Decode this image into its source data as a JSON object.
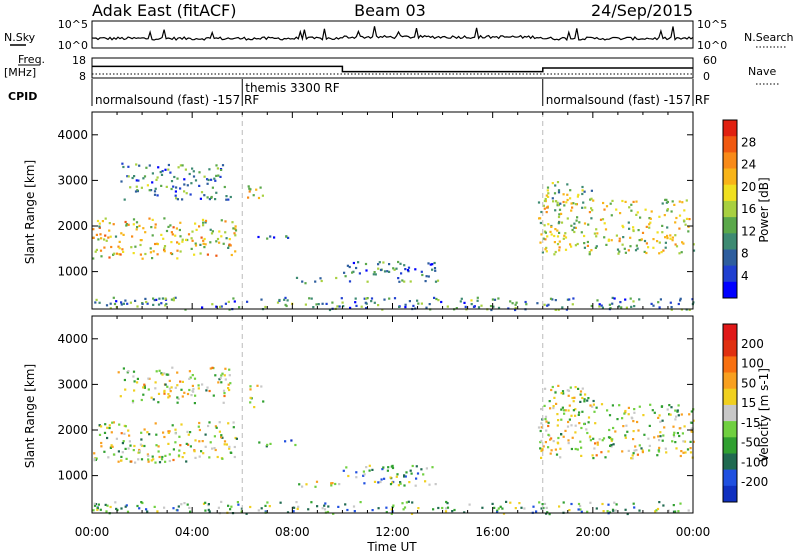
{
  "header": {
    "title_left": "Adak East (fitACF)",
    "title_center": "Beam 03",
    "title_right": "24/Sep/2015"
  },
  "top_panels": {
    "nsky_label": "N.Sky",
    "nsky_ticks": [
      "10^5",
      "10^0"
    ],
    "nsearch_label": "N.Search",
    "nsearch_ticks": [
      "10^5",
      "10^0"
    ],
    "freq_label": "Freq.",
    "freq_unit": "[MHz]",
    "freq_ticks": [
      "18",
      "8"
    ],
    "nave_label": "Nave",
    "nave_ticks": [
      "60",
      "0"
    ],
    "cpid_label": "CPID",
    "cpid_segments": [
      {
        "label": "normalsound (fast) -157 RF",
        "start_h": 0,
        "end_h": 6
      },
      {
        "label": "themis 3300 RF",
        "start_h": 6,
        "end_h": 18
      },
      {
        "label": "normalsound (fast) -157 RF",
        "start_h": 18,
        "end_h": 24
      }
    ],
    "freq_mhz_segments": [
      {
        "start_h": 0,
        "end_h": 10,
        "freq": 13.8
      },
      {
        "start_h": 10,
        "end_h": 18,
        "freq": 11.2
      },
      {
        "start_h": 18,
        "end_h": 24,
        "freq": 13.0
      }
    ]
  },
  "x_axis": {
    "label": "Time UT",
    "ticks": [
      "00:00",
      "04:00",
      "08:00",
      "12:00",
      "16:00",
      "20:00",
      "00:00"
    ],
    "range_h": [
      0,
      24
    ]
  },
  "chart_data": [
    {
      "type": "heatmap",
      "name": "power",
      "ylabel": "Slant Range [km]",
      "yticks": [
        "4000",
        "3000",
        "2000",
        "1000"
      ],
      "ylim": [
        180,
        4500
      ],
      "colorbar_label": "Power [dB]",
      "colorbar_ticks": [
        "28",
        "24",
        "20",
        "16",
        "12",
        "8",
        "4"
      ],
      "colorbar_colors": [
        "#0000ff",
        "#2040d0",
        "#2e5e9e",
        "#3d8a72",
        "#5aa84a",
        "#a8d040",
        "#f0e020",
        "#f8b418",
        "#f88a18",
        "#f05810",
        "#e02010"
      ],
      "scatter_regions": [
        {
          "t0": 0,
          "t1": 5.9,
          "r0": 1300,
          "r1": 2200,
          "level": 0.6
        },
        {
          "t0": 1.0,
          "t1": 5.5,
          "r0": 2600,
          "r1": 3400,
          "level": 0.3
        },
        {
          "t0": 6.1,
          "t1": 6.8,
          "r0": 2500,
          "r1": 2900,
          "level": 0.5
        },
        {
          "t0": 6.6,
          "t1": 8.2,
          "r0": 1650,
          "r1": 1800,
          "level": 0.2
        },
        {
          "t0": 7.8,
          "t1": 10.0,
          "r0": 750,
          "r1": 900,
          "level": 0.3
        },
        {
          "t0": 10.0,
          "t1": 13.8,
          "r0": 800,
          "r1": 1250,
          "level": 0.25
        },
        {
          "t0": 17.8,
          "t1": 24.0,
          "r0": 1400,
          "r1": 2600,
          "level": 0.55
        },
        {
          "t0": 18.0,
          "t1": 20.0,
          "r0": 2500,
          "r1": 3000,
          "level": 0.45
        },
        {
          "t0": 0,
          "t1": 24.0,
          "r0": 180,
          "r1": 450,
          "level": 0.3
        }
      ]
    },
    {
      "type": "heatmap",
      "name": "velocity",
      "ylabel": "Slant Range [km]",
      "yticks": [
        "4000",
        "3000",
        "2000",
        "1000"
      ],
      "ylim": [
        180,
        4500
      ],
      "colorbar_label": "Velocity [m s-1]",
      "colorbar_ticks": [
        "200",
        "100",
        "50",
        "15",
        "-15",
        "-50",
        "-100",
        "-200"
      ],
      "colorbar_colors": [
        "#1030c0",
        "#2050e0",
        "#206a50",
        "#30a030",
        "#70d040",
        "#c8c8c8",
        "#f0d020",
        "#f8a020",
        "#f87010",
        "#e03010",
        "#e01818"
      ],
      "scatter_regions": [
        {
          "t0": 0,
          "t1": 5.9,
          "r0": 1300,
          "r1": 2200,
          "level": 0.5
        },
        {
          "t0": 1.0,
          "t1": 5.5,
          "r0": 2600,
          "r1": 3400,
          "level": 0.5
        },
        {
          "t0": 6.1,
          "t1": 6.8,
          "r0": 2500,
          "r1": 3000,
          "level": 0.5
        },
        {
          "t0": 6.6,
          "t1": 8.2,
          "r0": 1650,
          "r1": 1800,
          "level": 0.3
        },
        {
          "t0": 7.8,
          "t1": 10.0,
          "r0": 750,
          "r1": 900,
          "level": 0.5
        },
        {
          "t0": 10.0,
          "t1": 13.8,
          "r0": 800,
          "r1": 1250,
          "level": 0.35
        },
        {
          "t0": 17.8,
          "t1": 24.0,
          "r0": 1400,
          "r1": 2600,
          "level": 0.5
        },
        {
          "t0": 18.0,
          "t1": 20.0,
          "r0": 2500,
          "r1": 3000,
          "level": 0.5
        },
        {
          "t0": 0,
          "t1": 24.0,
          "r0": 180,
          "r1": 450,
          "level": 0.35
        }
      ]
    }
  ]
}
